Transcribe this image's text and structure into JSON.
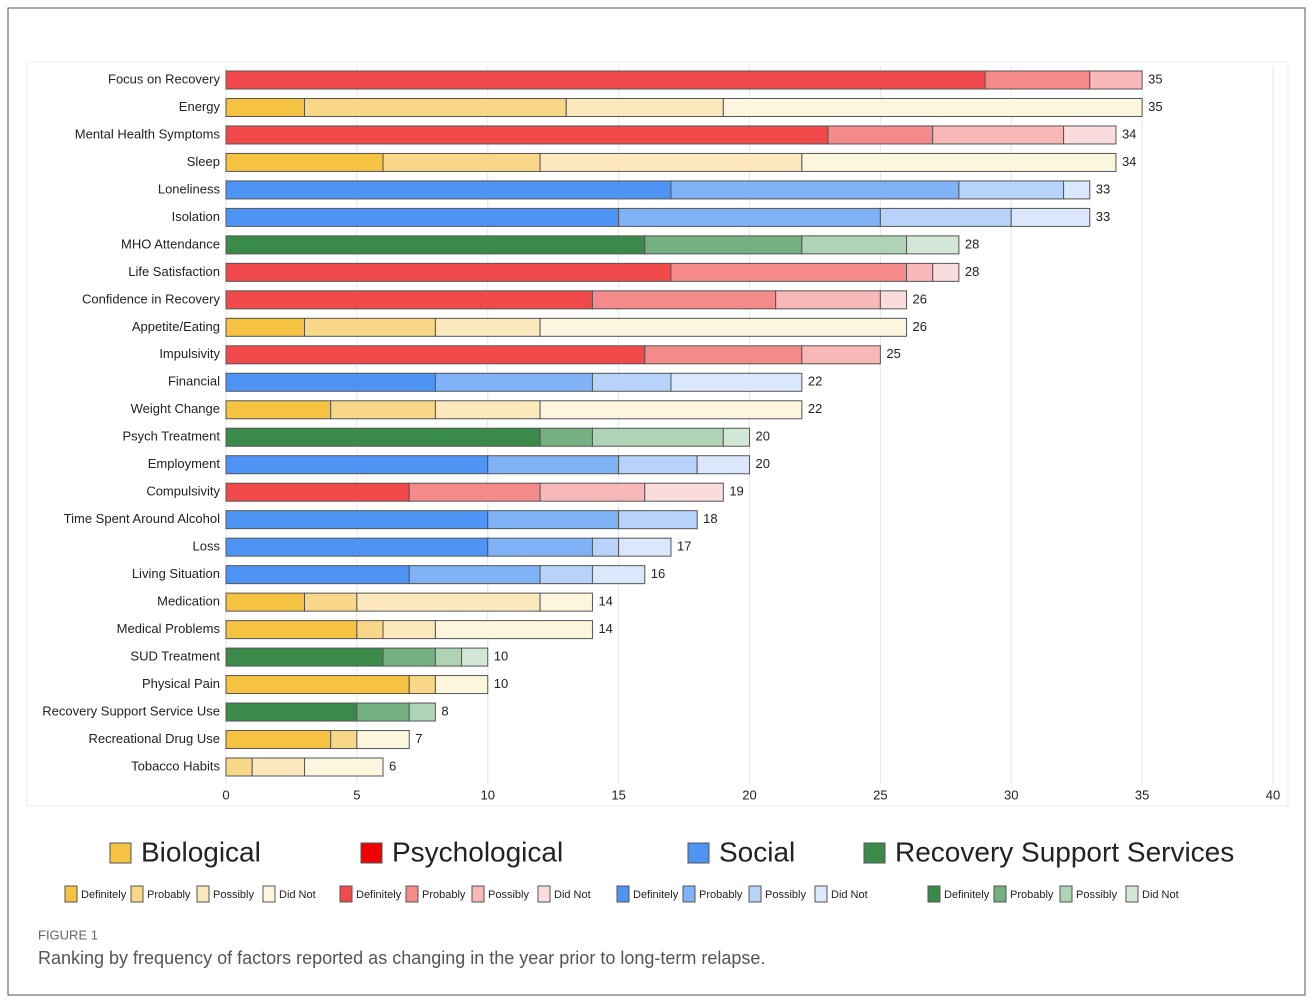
{
  "chart_data": {
    "type": "stacked_bar",
    "categories": [
      "Focus on Recovery",
      "Energy",
      "Mental Health Symptoms",
      "Sleep",
      "Loneliness",
      "Isolation",
      "MHO Attendance",
      "Life Satisfaction",
      "Confidence in Recovery",
      "Appetite/Eating",
      "Impulsivity",
      "Financial",
      "Weight Change",
      "Psych Treatment",
      "Employment",
      "Compulsivity",
      "Time Spent Around Alcohol",
      "Loss",
      "Living Situation",
      "Medication",
      "Medical Problems",
      "SUD Treatment",
      "Physical Pain",
      "Recovery Support Service Use",
      "Recreational Drug Use",
      "Tobacco Habits"
    ],
    "category_group": [
      "Psychological",
      "Biological",
      "Psychological",
      "Biological",
      "Social",
      "Social",
      "Recovery Support Services",
      "Psychological",
      "Psychological",
      "Biological",
      "Psychological",
      "Social",
      "Biological",
      "Recovery Support Services",
      "Social",
      "Psychological",
      "Social",
      "Social",
      "Social",
      "Biological",
      "Biological",
      "Recovery Support Services",
      "Biological",
      "Recovery Support Services",
      "Biological",
      "Biological"
    ],
    "series": [
      {
        "name": "Definitely",
        "values": [
          29,
          3,
          23,
          6,
          17,
          15,
          16,
          17,
          14,
          3,
          16,
          8,
          4,
          12,
          10,
          7,
          10,
          10,
          7,
          3,
          5,
          6,
          7,
          5,
          4,
          0
        ]
      },
      {
        "name": "Probably",
        "values": [
          4,
          10,
          4,
          6,
          11,
          10,
          6,
          9,
          7,
          5,
          6,
          6,
          4,
          2,
          5,
          5,
          5,
          4,
          5,
          2,
          1,
          2,
          1,
          2,
          1,
          1
        ]
      },
      {
        "name": "Possibly",
        "values": [
          2,
          6,
          5,
          10,
          4,
          5,
          4,
          1,
          4,
          4,
          3,
          3,
          4,
          5,
          3,
          4,
          3,
          1,
          2,
          7,
          2,
          1,
          0,
          1,
          0,
          2
        ]
      },
      {
        "name": "Did Not",
        "values": [
          0,
          16,
          2,
          12,
          1,
          3,
          2,
          1,
          1,
          14,
          0,
          5,
          10,
          1,
          2,
          3,
          0,
          2,
          2,
          2,
          6,
          1,
          2,
          0,
          2,
          3
        ]
      }
    ],
    "totals": [
      35,
      35,
      34,
      34,
      33,
      33,
      28,
      28,
      26,
      26,
      25,
      22,
      22,
      20,
      20,
      19,
      18,
      17,
      16,
      14,
      14,
      10,
      10,
      8,
      7,
      6
    ],
    "groups": [
      {
        "name": "Biological",
        "color": "#f5c242",
        "colors": [
          "#f5c242",
          "#f8d888",
          "#fbe9bd",
          "#fdf6de"
        ]
      },
      {
        "name": "Psychological",
        "color": "#ee0000",
        "colors": [
          "#f24a4a",
          "#f58a8a",
          "#f9b8b8",
          "#fbdcdc"
        ]
      },
      {
        "name": "Social",
        "color": "#4d94f5",
        "colors": [
          "#4d94f5",
          "#80b2f7",
          "#b7d3fa",
          "#dbe8fb"
        ]
      },
      {
        "name": "Recovery Support Services",
        "color": "#3a8a4a",
        "colors": [
          "#3a8a4a",
          "#75b080",
          "#aed3b5",
          "#d3e7d7"
        ]
      }
    ],
    "xlim": [
      0,
      40
    ],
    "xticks": [
      0,
      5,
      10,
      15,
      20,
      25,
      30,
      35,
      40
    ],
    "grid": true
  },
  "figure": {
    "label": "FIGURE 1",
    "caption": "Ranking by frequency of factors reported as changing in the year prior to long-term relapse."
  }
}
